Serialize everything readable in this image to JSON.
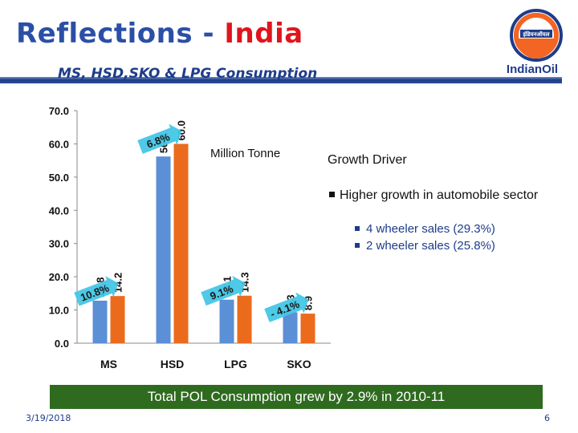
{
  "header": {
    "title_part1": "Reflections - ",
    "title_part2": "India",
    "subtitle": "MS, HSD,SKO & LPG Consumption",
    "logo_text": "IndianOil",
    "logo_script": "इंडियनऑयल"
  },
  "chart_data": {
    "type": "bar",
    "categories": [
      "MS",
      "HSD",
      "LPG",
      "SKO"
    ],
    "series": [
      {
        "values": [
          12.8,
          56.2,
          13.1,
          9.3
        ],
        "color": "#5b8fd6"
      },
      {
        "values": [
          14.2,
          60.0,
          14.3,
          8.9
        ],
        "color": "#ec6a1c"
      }
    ],
    "value_labels": [
      [
        "12.8",
        "56.2",
        "13.1",
        "9.3"
      ],
      [
        "14.2",
        "60.0",
        "14.3",
        "8.9"
      ]
    ],
    "growth_labels": [
      "10.8%",
      "6.8%",
      "9.1%",
      "- 4.1%"
    ],
    "unit": "Million Tonne",
    "ylim": [
      0,
      70
    ],
    "yticks": [
      "0.0",
      "10.0",
      "20.0",
      "30.0",
      "40.0",
      "50.0",
      "60.0",
      "70.0"
    ],
    "grid": false,
    "legend": "none"
  },
  "growth_driver": {
    "title": "Growth Driver",
    "main_bullet": "Higher growth in  automobile sector",
    "sub_bullets": [
      "4 wheeler sales (29.3%)",
      "2 wheeler sales (25.8%)"
    ]
  },
  "banner": {
    "text": "Total POL Consumption grew by 2.9% in  2010-11"
  },
  "footer": {
    "date": "3/19/2018",
    "page": "6"
  }
}
